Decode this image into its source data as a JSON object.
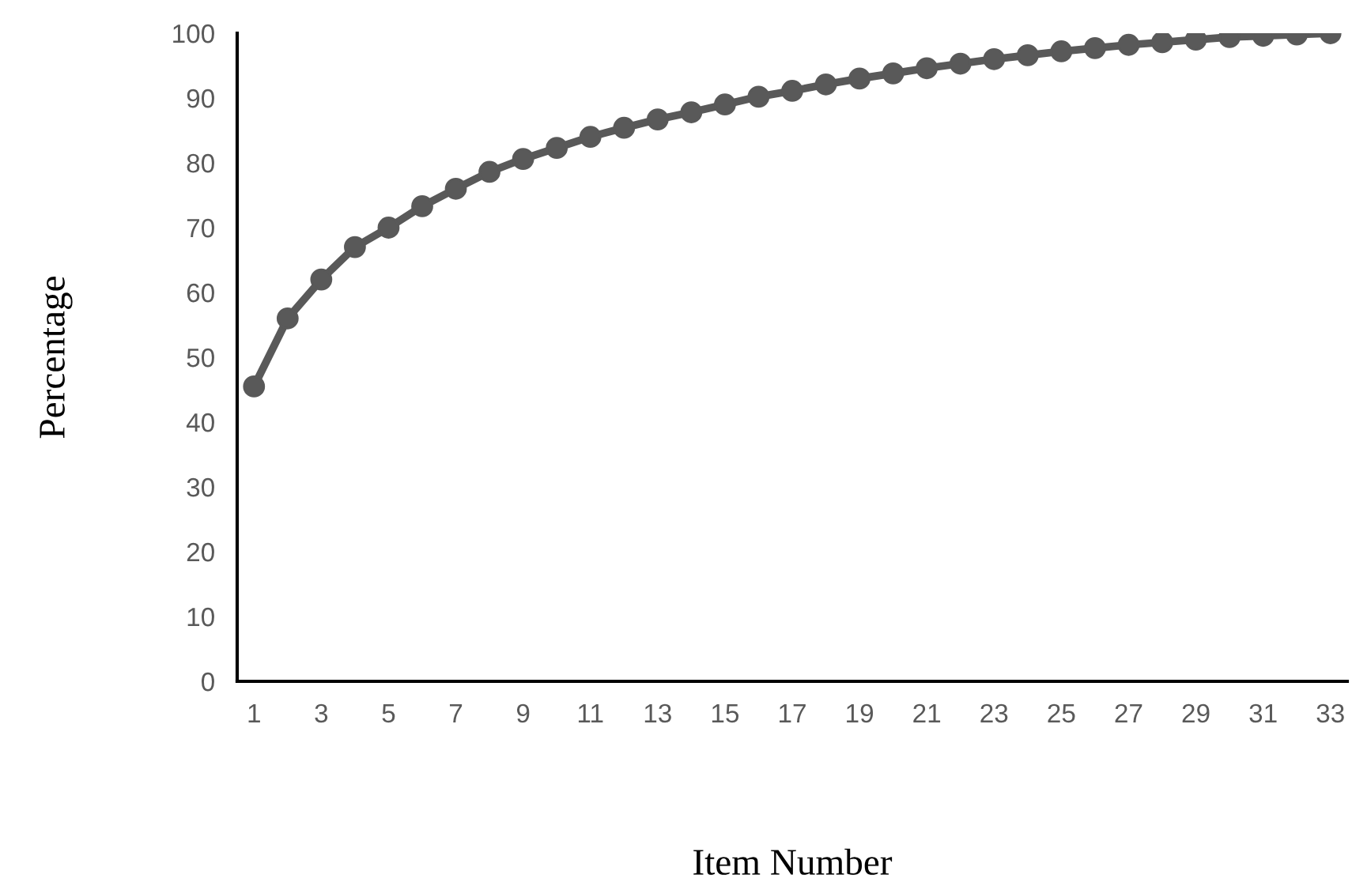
{
  "chart_data": {
    "type": "line",
    "xlabel": "Item Number",
    "ylabel": "Percentage",
    "categories": [
      "1",
      null,
      "3",
      null,
      "5",
      null,
      "7",
      null,
      "9",
      null,
      "11",
      null,
      "13",
      null,
      "15",
      null,
      "17",
      null,
      "19",
      null,
      "21",
      null,
      "23",
      null,
      "25",
      null,
      "27",
      null,
      "29",
      null,
      "31",
      null,
      "33"
    ],
    "series": [
      {
        "color": "#595959",
        "values": [
          45.5,
          56,
          62,
          67,
          70,
          73.3,
          76,
          78.6,
          80.6,
          82.3,
          84,
          85.4,
          86.7,
          87.8,
          89,
          90.2,
          91.1,
          92.1,
          93,
          93.8,
          94.6,
          95.3,
          96,
          96.6,
          97.2,
          97.7,
          98.2,
          98.6,
          99,
          99.4,
          99.6,
          99.8,
          100
        ]
      }
    ],
    "ylim": [
      0,
      100
    ],
    "yticks": [
      0,
      10,
      20,
      30,
      40,
      50,
      60,
      70,
      80,
      90,
      100
    ],
    "grid": false,
    "legend": false,
    "marker": "circle",
    "line_style": "solid"
  }
}
